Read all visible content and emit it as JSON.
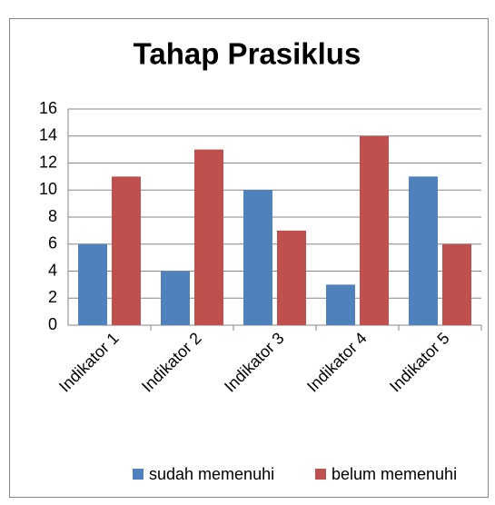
{
  "chart_data": {
    "type": "bar",
    "title": "Tahap Prasiklus",
    "categories": [
      "Indikator 1",
      "Indikator 2",
      "Indikator 3",
      "Indikator 4",
      "Indikator 5"
    ],
    "series": [
      {
        "name": "sudah memenuhi",
        "color": "#4f81bd",
        "values": [
          6,
          4,
          10,
          3,
          11
        ]
      },
      {
        "name": "belum memenuhi",
        "color": "#c0504d",
        "values": [
          11,
          13,
          7,
          14,
          6
        ]
      }
    ],
    "ylim": [
      0,
      16
    ],
    "yticks": [
      0,
      2,
      4,
      6,
      8,
      10,
      12,
      14,
      16
    ],
    "grid": true,
    "legend": "bottom"
  }
}
